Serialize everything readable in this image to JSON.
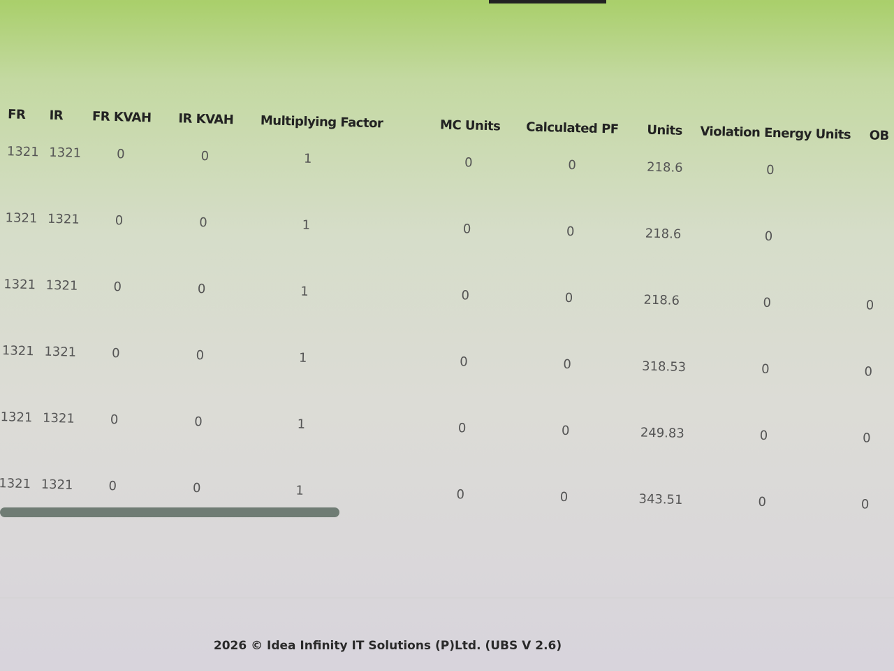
{
  "table": {
    "headers": [
      "FR",
      "IR",
      "FR KVAH",
      "IR KVAH",
      "Multiplying Factor",
      "MC Units",
      "Calculated PF",
      "Units",
      "Violation Energy Units",
      "OB P"
    ],
    "rows": [
      [
        "1321",
        "1321",
        "0",
        "0",
        "1",
        "0",
        "0",
        "218.6",
        "0",
        ""
      ],
      [
        "1321",
        "1321",
        "0",
        "0",
        "1",
        "0",
        "0",
        "218.6",
        "0",
        ""
      ],
      [
        "1321",
        "1321",
        "0",
        "0",
        "1",
        "0",
        "0",
        "218.6",
        "0",
        "0"
      ],
      [
        "1321",
        "1321",
        "0",
        "0",
        "1",
        "0",
        "0",
        "318.53",
        "0",
        "0"
      ],
      [
        "1321",
        "1321",
        "0",
        "0",
        "1",
        "0",
        "0",
        "249.83",
        "0",
        "0"
      ],
      [
        "1321",
        "1321",
        "0",
        "0",
        "1",
        "0",
        "0",
        "343.51",
        "0",
        "0"
      ]
    ]
  },
  "footer": {
    "text": "2026 © Idea Infinity IT Solutions (P)Ltd. (UBS V 2.6)"
  }
}
